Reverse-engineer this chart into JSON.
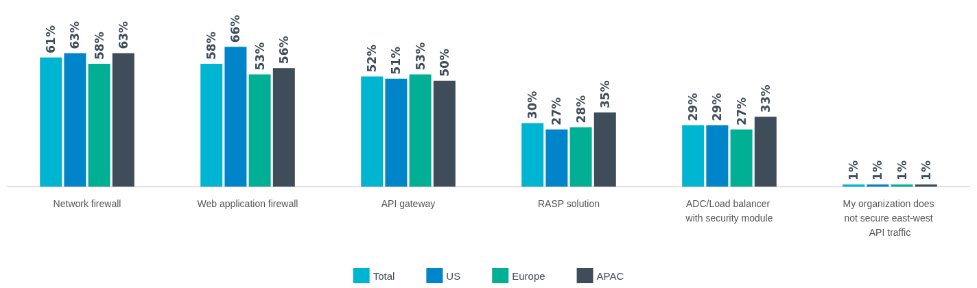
{
  "chart_data": {
    "type": "bar",
    "categories": [
      "Network firewall",
      "Web application firewall",
      "API gateway",
      "RASP solution",
      "ADC/Load balancer with security module",
      "My organization does not secure east-west API traffic"
    ],
    "series": [
      {
        "name": "Total",
        "color": "#00b5d1",
        "values": [
          61,
          58,
          52,
          30,
          29,
          1
        ],
        "value_labels": [
          "61%",
          "58%",
          "52%",
          "30%",
          "29%",
          "1%"
        ]
      },
      {
        "name": "US",
        "color": "#0085ca",
        "values": [
          63,
          66,
          51,
          27,
          29,
          1
        ],
        "value_labels": [
          "63%",
          "66%",
          "51%",
          "27%",
          "29%",
          "1%"
        ]
      },
      {
        "name": "Europe",
        "color": "#00af94",
        "values": [
          58,
          53,
          53,
          28,
          27,
          1
        ],
        "value_labels": [
          "58%",
          "53%",
          "53%",
          "28%",
          "27%",
          "1%"
        ]
      },
      {
        "name": "APAC",
        "color": "#3f4c5a",
        "values": [
          63,
          56,
          50,
          35,
          33,
          1
        ],
        "value_labels": [
          "63%",
          "56%",
          "50%",
          "35%",
          "33%",
          "1%"
        ]
      }
    ],
    "legend": "bottom"
  }
}
